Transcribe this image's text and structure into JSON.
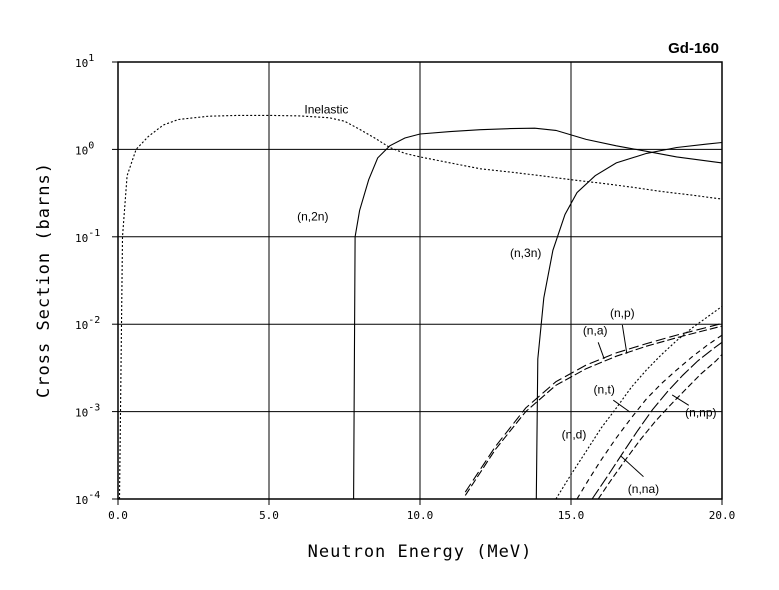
{
  "chart_data": {
    "type": "line",
    "title": "Gd-160",
    "xlabel": "Neutron Energy (MeV)",
    "ylabel": "Cross Section (barns)",
    "xlim": [
      0,
      20
    ],
    "ylim": [
      0.0001,
      10
    ],
    "yscale": "log",
    "grid": true,
    "x_ticks": [
      "0.0",
      "5.0",
      "10.0",
      "15.0",
      "20.0"
    ],
    "y_ticks": [
      {
        "base": "10",
        "exp": "-4"
      },
      {
        "base": "10",
        "exp": "-3"
      },
      {
        "base": "10",
        "exp": "-2"
      },
      {
        "base": "10",
        "exp": "-1"
      },
      {
        "base": "10",
        "exp": "0"
      },
      {
        "base": "10",
        "exp": "1"
      }
    ],
    "series": [
      {
        "name": "Inelastic",
        "dash": "2,2",
        "x": [
          0.05,
          0.15,
          0.3,
          0.6,
          1.0,
          1.5,
          2.0,
          3.0,
          4.0,
          5.0,
          6.0,
          7.0,
          7.5,
          8.0,
          8.5,
          9.0,
          9.5,
          10.0,
          11.0,
          12.0,
          13.0,
          14.0,
          15.0,
          16.0,
          17.0,
          18.0,
          19.0,
          20.0
        ],
        "y": [
          0.0001,
          0.1,
          0.5,
          1.0,
          1.4,
          1.9,
          2.2,
          2.4,
          2.45,
          2.45,
          2.42,
          2.3,
          2.1,
          1.7,
          1.35,
          1.05,
          0.9,
          0.82,
          0.7,
          0.6,
          0.55,
          0.5,
          0.45,
          0.41,
          0.37,
          0.33,
          0.3,
          0.27
        ]
      },
      {
        "name": "(n,2n)",
        "dash": "",
        "x": [
          7.8,
          7.85,
          8.0,
          8.3,
          8.6,
          9.0,
          9.5,
          10.0,
          11.0,
          12.0,
          13.0,
          13.8,
          14.5,
          15.5,
          16.5,
          17.5,
          18.5,
          20.0
        ],
        "y": [
          0.0001,
          0.1,
          0.2,
          0.45,
          0.8,
          1.1,
          1.35,
          1.5,
          1.6,
          1.68,
          1.73,
          1.75,
          1.65,
          1.3,
          1.1,
          0.95,
          0.82,
          0.7
        ]
      },
      {
        "name": "(n,3n)",
        "dash": "",
        "x": [
          13.85,
          13.9,
          14.1,
          14.4,
          14.8,
          15.2,
          15.8,
          16.5,
          17.5,
          18.5,
          19.5,
          20.0
        ],
        "y": [
          0.0001,
          0.004,
          0.02,
          0.07,
          0.18,
          0.32,
          0.5,
          0.7,
          0.9,
          1.05,
          1.15,
          1.2
        ]
      },
      {
        "name": "(n,p)",
        "dash": "10,4",
        "x": [
          11.5,
          12.5,
          13.5,
          14.5,
          15.5,
          16.5,
          17.5,
          18.5,
          19.5,
          20.0
        ],
        "y": [
          0.00012,
          0.0004,
          0.0011,
          0.0022,
          0.0034,
          0.0047,
          0.006,
          0.0075,
          0.0092,
          0.0102
        ]
      },
      {
        "name": "(n,a)",
        "dash": "8,3",
        "x": [
          11.5,
          12.5,
          13.5,
          14.5,
          15.5,
          16.5,
          17.5,
          18.5,
          19.5,
          20.0
        ],
        "y": [
          0.00011,
          0.00037,
          0.001,
          0.002,
          0.0031,
          0.0043,
          0.0056,
          0.007,
          0.0086,
          0.0095
        ]
      },
      {
        "name": "(n,d)",
        "dash": "2,2",
        "x": [
          14.5,
          15.0,
          15.5,
          16.0,
          16.5,
          17.0,
          17.5,
          18.0,
          18.5,
          19.0,
          19.5,
          20.0
        ],
        "y": [
          0.0001,
          0.00019,
          0.00035,
          0.00065,
          0.0011,
          0.0019,
          0.003,
          0.0045,
          0.0065,
          0.009,
          0.012,
          0.016
        ]
      },
      {
        "name": "(n,t)",
        "dash": "5,4",
        "x": [
          15.2,
          15.6,
          16.0,
          16.5,
          17.0,
          17.5,
          18.0,
          18.5,
          19.0,
          19.5,
          20.0
        ],
        "y": [
          0.0001,
          0.00017,
          0.00028,
          0.0005,
          0.00085,
          0.0014,
          0.0021,
          0.003,
          0.0042,
          0.0057,
          0.0075
        ]
      },
      {
        "name": "(n,np)",
        "dash": "6,3",
        "x": [
          15.9,
          16.3,
          16.8,
          17.3,
          17.8,
          18.3,
          18.8,
          19.3,
          19.8,
          20.0
        ],
        "y": [
          0.0001,
          0.00016,
          0.00028,
          0.00048,
          0.00078,
          0.0012,
          0.0018,
          0.0027,
          0.0038,
          0.0045
        ]
      },
      {
        "name": "(n,na)",
        "dash": "12,3",
        "x": [
          15.7,
          16.2,
          16.7,
          17.2,
          17.7,
          18.2,
          18.7,
          19.2,
          19.7,
          20.0
        ],
        "y": [
          0.0001,
          0.00018,
          0.00033,
          0.0006,
          0.00105,
          0.0017,
          0.0026,
          0.0038,
          0.0052,
          0.0062
        ]
      }
    ],
    "annotations": [
      {
        "text": "Inelastic",
        "tx": 6.9,
        "ty": 2.85
      },
      {
        "text": "(n,2n)",
        "tx": 6.45,
        "ty": 0.17
      },
      {
        "text": "(n,3n)",
        "tx": 13.5,
        "ty": 0.065
      },
      {
        "text": "(n,p)",
        "tx": 16.7,
        "ty": 0.0135,
        "lx1": 16.7,
        "ly1": 0.0098,
        "lx2": 16.85,
        "ly2": 0.0046
      },
      {
        "text": "(n,a)",
        "tx": 15.8,
        "ty": 0.0085,
        "lx1": 15.9,
        "ly1": 0.0062,
        "lx2": 16.1,
        "ly2": 0.004
      },
      {
        "text": "(n,t)",
        "tx": 16.1,
        "ty": 0.0018,
        "lx1": 16.4,
        "ly1": 0.00135,
        "lx2": 16.95,
        "ly2": 0.00099
      },
      {
        "text": "(n,d)",
        "tx": 15.1,
        "ty": 0.00055
      },
      {
        "text": "(n,np)",
        "tx": 19.3,
        "ty": 0.00098,
        "lx1": 18.9,
        "ly1": 0.00118,
        "lx2": 18.35,
        "ly2": 0.00155
      },
      {
        "text": "(n,na)",
        "tx": 17.4,
        "ty": 0.00013,
        "lx1": 17.4,
        "ly1": 0.00018,
        "lx2": 16.65,
        "ly2": 0.00031
      }
    ]
  }
}
